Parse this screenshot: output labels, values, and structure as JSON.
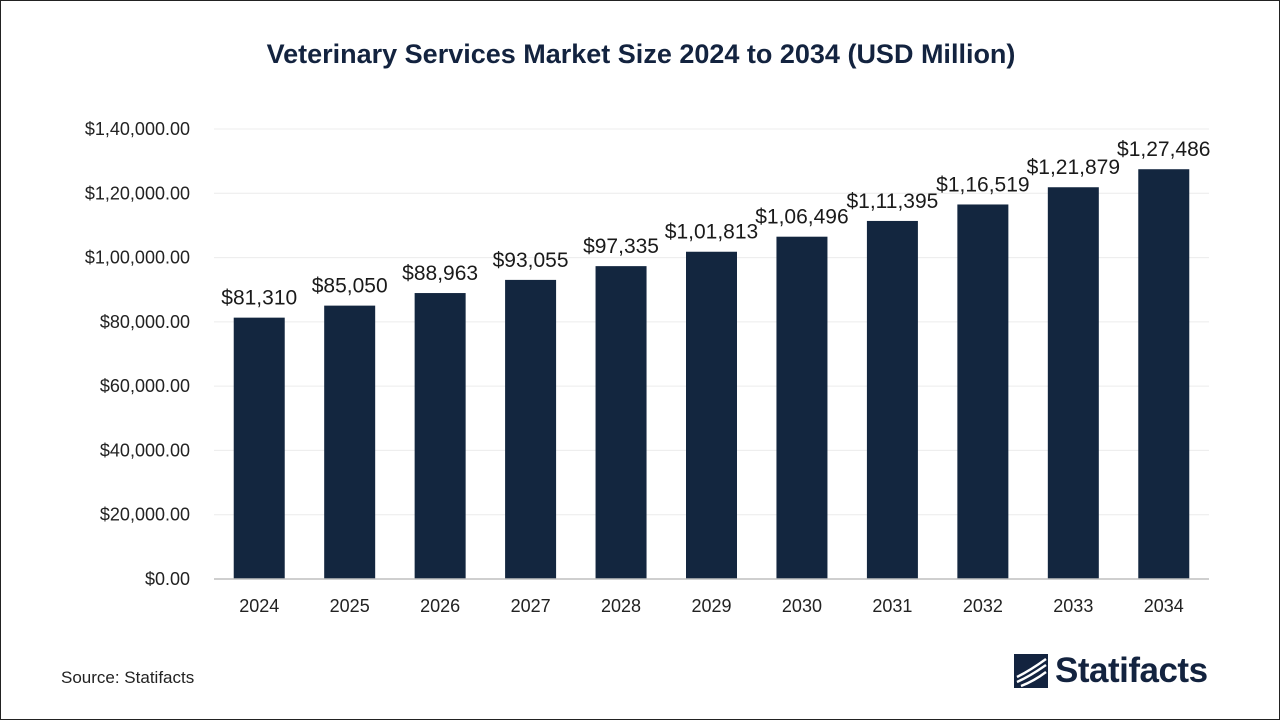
{
  "chart_data": {
    "type": "bar",
    "title": "Veterinary Services Market Size 2024 to 2034 (USD Million)",
    "categories": [
      "2024",
      "2025",
      "2026",
      "2027",
      "2028",
      "2029",
      "2030",
      "2031",
      "2032",
      "2033",
      "2034"
    ],
    "values": [
      81310,
      85050,
      88963,
      93055,
      97335,
      101813,
      106496,
      111395,
      116519,
      121879,
      127486
    ],
    "data_labels": [
      "$81,310",
      "$85,050",
      "$88,963",
      "$93,055",
      "$97,335",
      "$1,01,813",
      "$1,06,496",
      "$1,11,395",
      "$1,16,519",
      "$1,21,879",
      "$1,27,486"
    ],
    "yticks": [
      0,
      20000,
      40000,
      60000,
      80000,
      100000,
      120000,
      140000
    ],
    "ytick_labels": [
      "$0.00",
      "$20,000.00",
      "$40,000.00",
      "$60,000.00",
      "$80,000.00",
      "$1,00,000.00",
      "$1,20,000.00",
      "$1,40,000.00"
    ],
    "ylim": [
      0,
      140000
    ],
    "grid": true,
    "legend": "none",
    "bar_color": "#13263f"
  },
  "footer": {
    "source": "Source: Statifacts",
    "brand": "Statifacts",
    "brand_icon": "statifacts-logo-icon",
    "brand_color": "#13233f"
  }
}
